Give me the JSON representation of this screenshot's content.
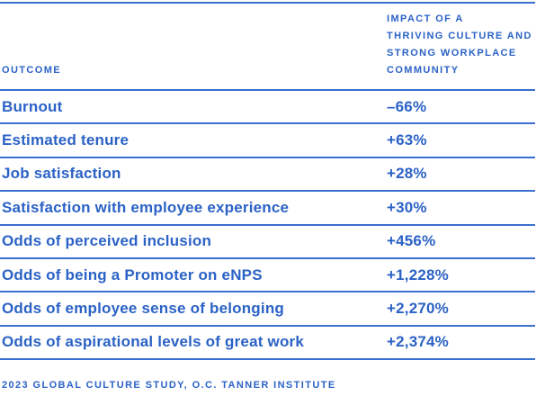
{
  "colors": {
    "accent_blue": "#2b62c6",
    "rule_blue": "#3a6fd0",
    "background": "#ffffff"
  },
  "table": {
    "col1_header": "OUTCOME",
    "col2_header": "IMPACT OF A THRIVING CULTURE AND STRONG WORKPLACE COMMUNITY",
    "col2_header_lines": {
      "line1": "IMPACT OF A",
      "line2": "THRIVING CULTURE AND",
      "line3": "STRONG WORKPLACE",
      "line4": "COMMUNITY"
    },
    "rows": [
      {
        "outcome": "Burnout",
        "impact": "–66%"
      },
      {
        "outcome": "Estimated tenure",
        "impact": "+63%"
      },
      {
        "outcome": "Job satisfaction",
        "impact": "+28%"
      },
      {
        "outcome": "Satisfaction with employee experience",
        "impact": "+30%"
      },
      {
        "outcome": "Odds of perceived inclusion",
        "impact": "+456%"
      },
      {
        "outcome": "Odds of being a Promoter on eNPS",
        "impact": "+1,228%"
      },
      {
        "outcome": "Odds of employee sense of belonging",
        "impact": "+2,270%"
      },
      {
        "outcome": "Odds of aspirational levels of great work",
        "impact": "+2,374%"
      }
    ]
  },
  "footer": {
    "source": "2023 GLOBAL CULTURE STUDY, O.C. TANNER INSTITUTE"
  },
  "chart_data": {
    "type": "table",
    "title": "",
    "columns": [
      "OUTCOME",
      "IMPACT OF A THRIVING CULTURE AND STRONG WORKPLACE COMMUNITY"
    ],
    "categories": [
      "Burnout",
      "Estimated tenure",
      "Job satisfaction",
      "Satisfaction with employee experience",
      "Odds of perceived inclusion",
      "Odds of being a Promoter on eNPS",
      "Odds of employee sense of belonging",
      "Odds of aspirational levels of great work"
    ],
    "values": [
      -66,
      63,
      28,
      30,
      456,
      1228,
      2270,
      2374
    ],
    "value_labels": [
      "–66%",
      "+63%",
      "+28%",
      "+30%",
      "+456%",
      "+1,228%",
      "+2,270%",
      "+2,374%"
    ],
    "unit": "percent",
    "source": "2023 GLOBAL CULTURE STUDY, O.C. TANNER INSTITUTE"
  }
}
